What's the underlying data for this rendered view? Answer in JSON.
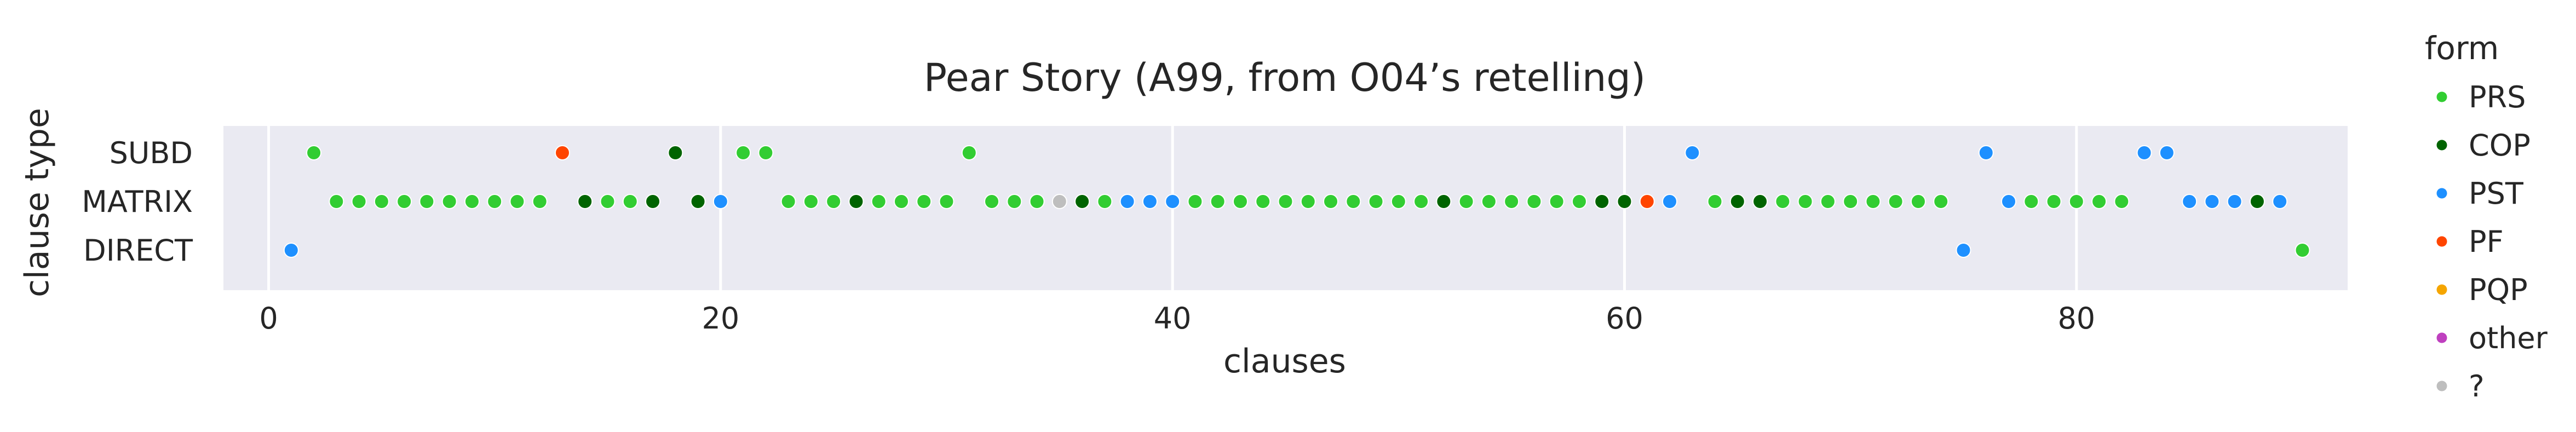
{
  "chart_data": {
    "type": "scatter",
    "title": "Pear Story (A99, from O04’s retelling)",
    "xlabel": "clauses",
    "ylabel": "clause type",
    "xlim": [
      -2,
      92
    ],
    "xticks": [
      0,
      20,
      40,
      60,
      80
    ],
    "categories": [
      "SUBD",
      "MATRIX",
      "DIRECT"
    ],
    "grid": true,
    "legend_position": "outside-right",
    "legend": {
      "title": "form",
      "entries": [
        {
          "label": "PRS",
          "color": "#32cd32"
        },
        {
          "label": "COP",
          "color": "#006400"
        },
        {
          "label": "PST",
          "color": "#1e90ff"
        },
        {
          "label": "PF",
          "color": "#ff4500"
        },
        {
          "label": "PQP",
          "color": "#f5a500"
        },
        {
          "label": "other",
          "color": "#bf40bf"
        },
        {
          "label": "?",
          "color": "#bebebe"
        }
      ]
    },
    "points": [
      {
        "x": 1,
        "y": "DIRECT",
        "form": "PST"
      },
      {
        "x": 2,
        "y": "SUBD",
        "form": "PRS"
      },
      {
        "x": 3,
        "y": "MATRIX",
        "form": "PRS"
      },
      {
        "x": 4,
        "y": "MATRIX",
        "form": "PRS"
      },
      {
        "x": 5,
        "y": "MATRIX",
        "form": "PRS"
      },
      {
        "x": 6,
        "y": "MATRIX",
        "form": "PRS"
      },
      {
        "x": 7,
        "y": "MATRIX",
        "form": "PRS"
      },
      {
        "x": 8,
        "y": "MATRIX",
        "form": "PRS"
      },
      {
        "x": 9,
        "y": "MATRIX",
        "form": "PRS"
      },
      {
        "x": 10,
        "y": "MATRIX",
        "form": "PRS"
      },
      {
        "x": 11,
        "y": "MATRIX",
        "form": "PRS"
      },
      {
        "x": 12,
        "y": "MATRIX",
        "form": "PRS"
      },
      {
        "x": 13,
        "y": "SUBD",
        "form": "PF"
      },
      {
        "x": 14,
        "y": "MATRIX",
        "form": "COP"
      },
      {
        "x": 15,
        "y": "MATRIX",
        "form": "PRS"
      },
      {
        "x": 16,
        "y": "MATRIX",
        "form": "PRS"
      },
      {
        "x": 17,
        "y": "MATRIX",
        "form": "COP"
      },
      {
        "x": 18,
        "y": "SUBD",
        "form": "COP"
      },
      {
        "x": 19,
        "y": "MATRIX",
        "form": "COP"
      },
      {
        "x": 20,
        "y": "MATRIX",
        "form": "PST"
      },
      {
        "x": 21,
        "y": "SUBD",
        "form": "PRS"
      },
      {
        "x": 22,
        "y": "SUBD",
        "form": "PRS"
      },
      {
        "x": 23,
        "y": "MATRIX",
        "form": "PRS"
      },
      {
        "x": 24,
        "y": "MATRIX",
        "form": "PRS"
      },
      {
        "x": 25,
        "y": "MATRIX",
        "form": "PRS"
      },
      {
        "x": 26,
        "y": "MATRIX",
        "form": "COP"
      },
      {
        "x": 27,
        "y": "MATRIX",
        "form": "PRS"
      },
      {
        "x": 28,
        "y": "MATRIX",
        "form": "PRS"
      },
      {
        "x": 29,
        "y": "MATRIX",
        "form": "PRS"
      },
      {
        "x": 30,
        "y": "MATRIX",
        "form": "PRS"
      },
      {
        "x": 31,
        "y": "SUBD",
        "form": "PRS"
      },
      {
        "x": 32,
        "y": "MATRIX",
        "form": "PRS"
      },
      {
        "x": 33,
        "y": "MATRIX",
        "form": "PRS"
      },
      {
        "x": 34,
        "y": "MATRIX",
        "form": "PRS"
      },
      {
        "x": 35,
        "y": "MATRIX",
        "form": "?"
      },
      {
        "x": 36,
        "y": "MATRIX",
        "form": "COP"
      },
      {
        "x": 37,
        "y": "MATRIX",
        "form": "PRS"
      },
      {
        "x": 38,
        "y": "MATRIX",
        "form": "PST"
      },
      {
        "x": 39,
        "y": "MATRIX",
        "form": "PST"
      },
      {
        "x": 40,
        "y": "MATRIX",
        "form": "PST"
      },
      {
        "x": 41,
        "y": "MATRIX",
        "form": "PRS"
      },
      {
        "x": 42,
        "y": "MATRIX",
        "form": "PRS"
      },
      {
        "x": 43,
        "y": "MATRIX",
        "form": "PRS"
      },
      {
        "x": 44,
        "y": "MATRIX",
        "form": "PRS"
      },
      {
        "x": 45,
        "y": "MATRIX",
        "form": "PRS"
      },
      {
        "x": 46,
        "y": "MATRIX",
        "form": "PRS"
      },
      {
        "x": 47,
        "y": "MATRIX",
        "form": "PRS"
      },
      {
        "x": 48,
        "y": "MATRIX",
        "form": "PRS"
      },
      {
        "x": 49,
        "y": "MATRIX",
        "form": "PRS"
      },
      {
        "x": 50,
        "y": "MATRIX",
        "form": "PRS"
      },
      {
        "x": 51,
        "y": "MATRIX",
        "form": "PRS"
      },
      {
        "x": 52,
        "y": "MATRIX",
        "form": "COP"
      },
      {
        "x": 53,
        "y": "MATRIX",
        "form": "PRS"
      },
      {
        "x": 54,
        "y": "MATRIX",
        "form": "PRS"
      },
      {
        "x": 55,
        "y": "MATRIX",
        "form": "PRS"
      },
      {
        "x": 56,
        "y": "MATRIX",
        "form": "PRS"
      },
      {
        "x": 57,
        "y": "MATRIX",
        "form": "PRS"
      },
      {
        "x": 58,
        "y": "MATRIX",
        "form": "PRS"
      },
      {
        "x": 59,
        "y": "MATRIX",
        "form": "COP"
      },
      {
        "x": 60,
        "y": "MATRIX",
        "form": "COP"
      },
      {
        "x": 61,
        "y": "MATRIX",
        "form": "PF"
      },
      {
        "x": 62,
        "y": "MATRIX",
        "form": "PST"
      },
      {
        "x": 63,
        "y": "SUBD",
        "form": "PST"
      },
      {
        "x": 64,
        "y": "MATRIX",
        "form": "PRS"
      },
      {
        "x": 65,
        "y": "MATRIX",
        "form": "COP"
      },
      {
        "x": 66,
        "y": "MATRIX",
        "form": "COP"
      },
      {
        "x": 67,
        "y": "MATRIX",
        "form": "PRS"
      },
      {
        "x": 68,
        "y": "MATRIX",
        "form": "PRS"
      },
      {
        "x": 69,
        "y": "MATRIX",
        "form": "PRS"
      },
      {
        "x": 70,
        "y": "MATRIX",
        "form": "PRS"
      },
      {
        "x": 71,
        "y": "MATRIX",
        "form": "PRS"
      },
      {
        "x": 72,
        "y": "MATRIX",
        "form": "PRS"
      },
      {
        "x": 73,
        "y": "MATRIX",
        "form": "PRS"
      },
      {
        "x": 74,
        "y": "MATRIX",
        "form": "PRS"
      },
      {
        "x": 75,
        "y": "DIRECT",
        "form": "PST"
      },
      {
        "x": 76,
        "y": "SUBD",
        "form": "PST"
      },
      {
        "x": 77,
        "y": "MATRIX",
        "form": "PST"
      },
      {
        "x": 78,
        "y": "MATRIX",
        "form": "PRS"
      },
      {
        "x": 79,
        "y": "MATRIX",
        "form": "PRS"
      },
      {
        "x": 80,
        "y": "MATRIX",
        "form": "PRS"
      },
      {
        "x": 81,
        "y": "MATRIX",
        "form": "PRS"
      },
      {
        "x": 82,
        "y": "MATRIX",
        "form": "PRS"
      },
      {
        "x": 83,
        "y": "SUBD",
        "form": "PST"
      },
      {
        "x": 84,
        "y": "SUBD",
        "form": "PST"
      },
      {
        "x": 85,
        "y": "MATRIX",
        "form": "PST"
      },
      {
        "x": 86,
        "y": "MATRIX",
        "form": "PST"
      },
      {
        "x": 87,
        "y": "MATRIX",
        "form": "PST"
      },
      {
        "x": 88,
        "y": "MATRIX",
        "form": "COP"
      },
      {
        "x": 89,
        "y": "MATRIX",
        "form": "PST"
      },
      {
        "x": 90,
        "y": "DIRECT",
        "form": "PRS"
      }
    ]
  }
}
